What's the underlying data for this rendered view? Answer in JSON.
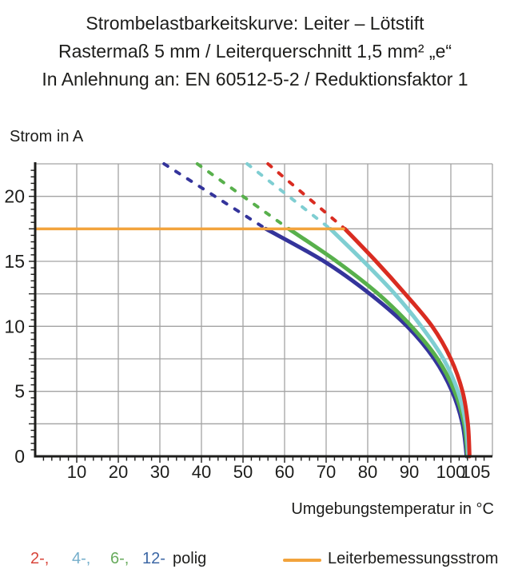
{
  "title": {
    "line1": "Strombelastbarkeitskurve: Leiter – Lötstift",
    "line2": "Rastermaß 5 mm / Leiterquerschnitt 1,5 mm² „e“",
    "line3": "In Anlehnung an: EN 60512-5-2 / Reduktionsfaktor 1"
  },
  "axes": {
    "y_label": "Strom in A",
    "x_label": "Umgebungstemperatur in °C"
  },
  "legend": {
    "poles": [
      {
        "label": "2-,",
        "color": "#d8453a"
      },
      {
        "label": "4-,",
        "color": "#74aecb"
      },
      {
        "label": "6-,",
        "color": "#68ab5d"
      },
      {
        "label": "12-",
        "color": "#3c67a5"
      }
    ],
    "poles_suffix": "polig",
    "rated": {
      "label": "Leiterbemessungsstrom",
      "color": "#f2a33c"
    }
  },
  "chart_data": {
    "type": "line",
    "title": "Strombelastbarkeitskurve: Leiter – Lötstift / Rastermaß 5 mm / Leiterquerschnitt 1,5 mm² „e“ / In Anlehnung an: EN 60512-5-2 / Reduktionsfaktor 1",
    "xlabel": "Umgebungstemperatur in °C",
    "ylabel": "Strom in A",
    "xlim": [
      0,
      110
    ],
    "ylim": [
      0,
      22.5
    ],
    "xticks": [
      10,
      20,
      30,
      40,
      50,
      60,
      70,
      80,
      90,
      100,
      105
    ],
    "yticks": [
      0,
      5,
      10,
      15,
      20
    ],
    "x_minor_step": 2,
    "y_minor_step": 0.5,
    "grid": true,
    "grid_x_step": 10,
    "grid_y_step": 2.5,
    "grid_color": "#a3a3a3",
    "axis_color": "#1d1d1b",
    "rated_current": {
      "name": "Leiterbemessungsstrom",
      "value_A": 17.5,
      "color": "#f2a33c",
      "x_range": [
        0,
        74.5
      ]
    },
    "series": [
      {
        "name": "12-polig",
        "color": "#34349b",
        "dashed_above_rated": [
          [
            31,
            22.5
          ],
          [
            55.5,
            17.5
          ]
        ],
        "points": [
          [
            55.5,
            17.5
          ],
          [
            69.5,
            15
          ],
          [
            80.5,
            12.5
          ],
          [
            89.5,
            10
          ],
          [
            96,
            7.5
          ],
          [
            100.3,
            5
          ],
          [
            102.8,
            2.5
          ],
          [
            103.8,
            0
          ]
        ]
      },
      {
        "name": "6-polig",
        "color": "#58b04c",
        "dashed_above_rated": [
          [
            39,
            22.5
          ],
          [
            61,
            17.5
          ]
        ],
        "points": [
          [
            61,
            17.5
          ],
          [
            72.5,
            15
          ],
          [
            82.5,
            12.5
          ],
          [
            90.5,
            10
          ],
          [
            96.8,
            7.5
          ],
          [
            100.9,
            5
          ],
          [
            103.2,
            2.5
          ],
          [
            104,
            0
          ]
        ]
      },
      {
        "name": "4-polig",
        "color": "#7fced2",
        "dashed_above_rated": [
          [
            51,
            22.5
          ],
          [
            71,
            17.5
          ]
        ],
        "points": [
          [
            71,
            17.5
          ],
          [
            79,
            15
          ],
          [
            86.5,
            12.5
          ],
          [
            92.9,
            10
          ],
          [
            98.2,
            7.5
          ],
          [
            101.7,
            5
          ],
          [
            103.6,
            2.5
          ],
          [
            104.2,
            0
          ]
        ]
      },
      {
        "name": "2-polig",
        "color": "#d92c21",
        "dashed_above_rated": [
          [
            56,
            22.5
          ],
          [
            74.5,
            17.5
          ]
        ],
        "points": [
          [
            74.5,
            17.5
          ],
          [
            82,
            15
          ],
          [
            89,
            12.5
          ],
          [
            95.5,
            10
          ],
          [
            100,
            7.5
          ],
          [
            102.8,
            5
          ],
          [
            104.1,
            2.5
          ],
          [
            104.5,
            0
          ]
        ]
      }
    ],
    "xtick_label_offsets": {
      "105": 5
    },
    "legend_position": "bottom"
  }
}
